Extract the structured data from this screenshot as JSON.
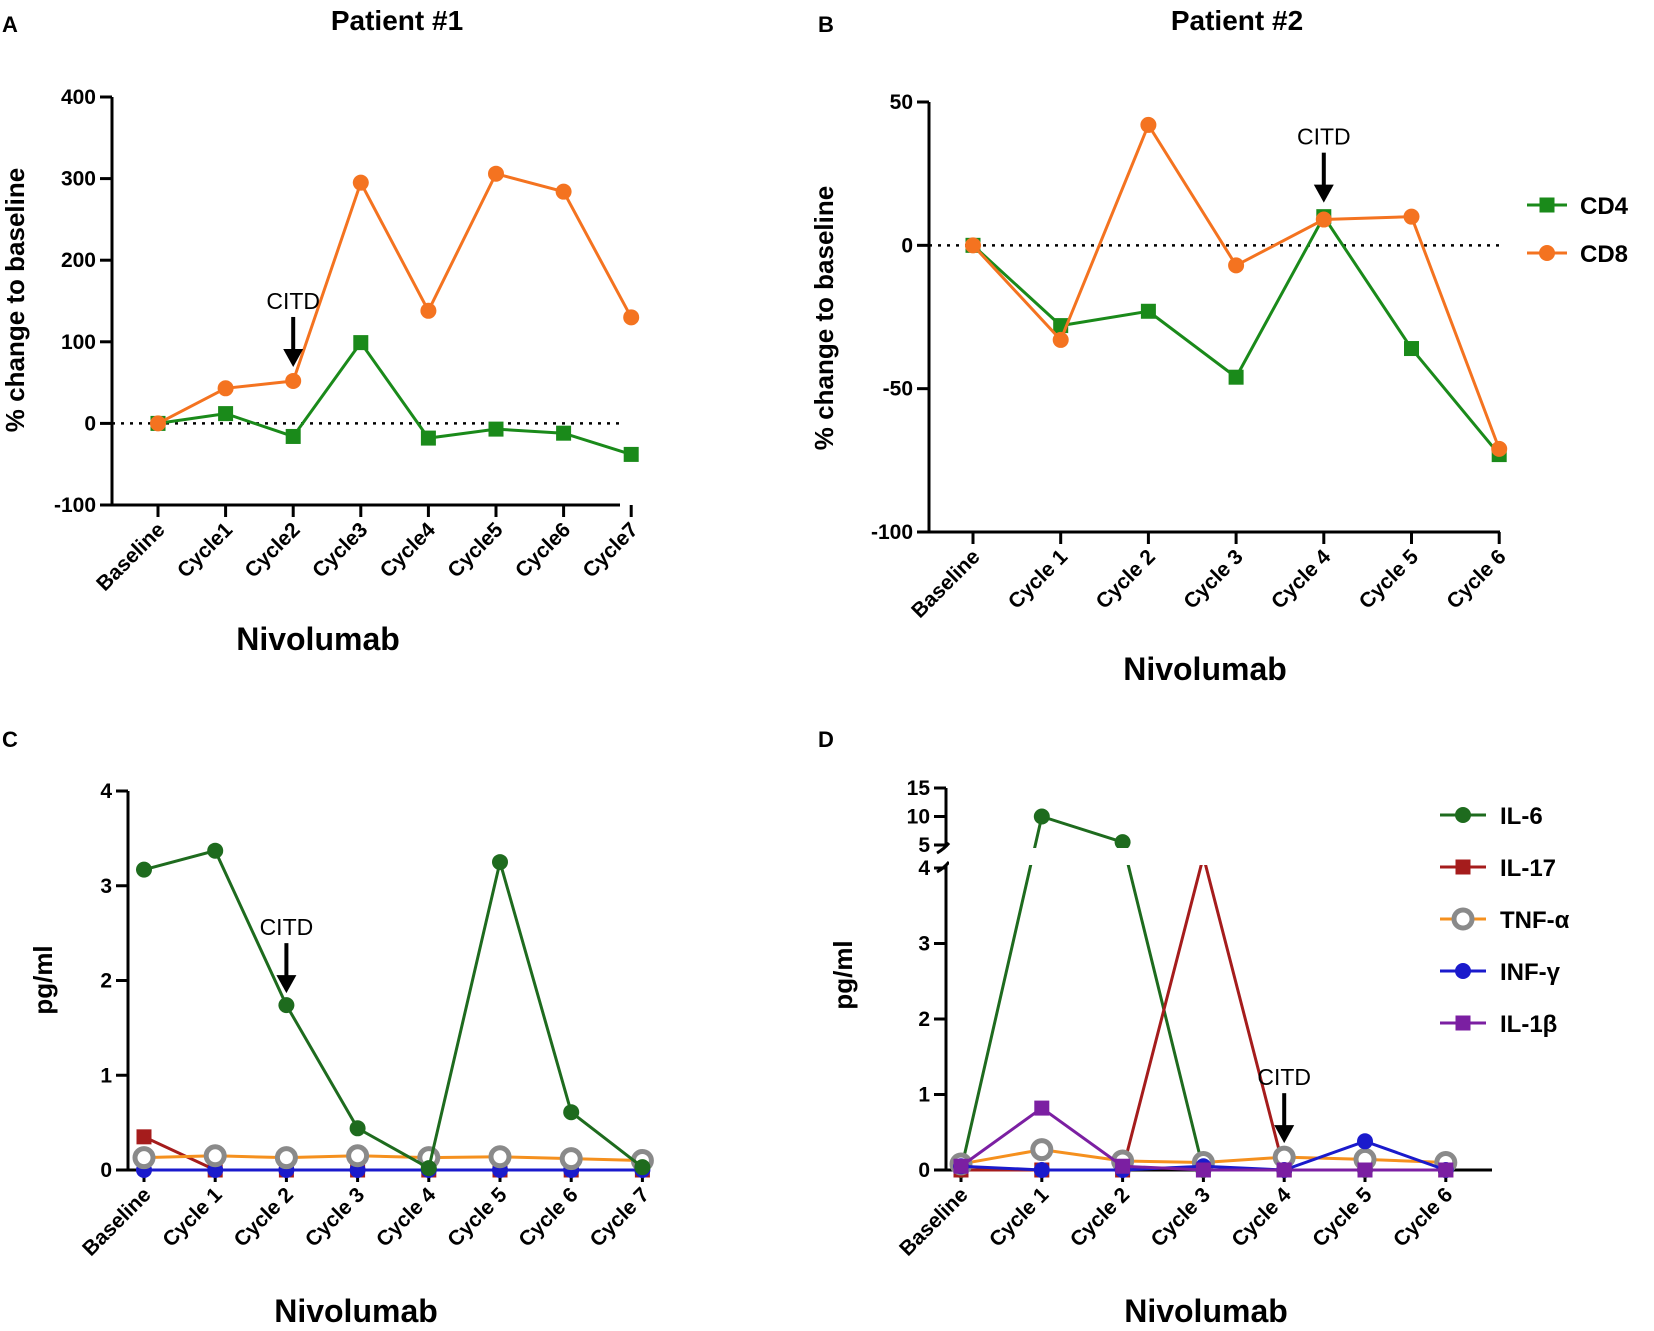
{
  "chart_data": [
    {
      "type": "line",
      "panel": "A",
      "title": "Patient #1",
      "xlabel": "Nivolumab",
      "ylabel": "% change to baseline",
      "ylim": [
        -100,
        400
      ],
      "yticks": [
        "400",
        "300",
        "200",
        "100",
        "0",
        "-100"
      ],
      "categories": [
        "Baseline",
        "Cycle1",
        "Cycle2",
        "Cycle3",
        "Cycle4",
        "Cycle5",
        "Cycle6",
        "Cycle7"
      ],
      "series": [
        {
          "name": "CD4",
          "color": "#1a8a1a",
          "marker": "square",
          "values": [
            0,
            12,
            -16,
            99,
            -18,
            -7,
            -12,
            -38
          ]
        },
        {
          "name": "CD8",
          "color": "#f47320",
          "marker": "circle",
          "values": [
            0,
            43,
            52,
            295,
            138,
            306,
            284,
            130
          ]
        }
      ],
      "reference_line": 0,
      "annotation": {
        "text": "CITD",
        "category_index": 2
      }
    },
    {
      "type": "line",
      "panel": "B",
      "title": "Patient #2",
      "xlabel": "Nivolumab",
      "ylabel": "% change to baseline",
      "ylim": [
        -100,
        50
      ],
      "yticks": [
        "50",
        "0",
        "-50",
        "-100"
      ],
      "categories": [
        "Baseline",
        "Cycle 1",
        "Cycle 2",
        "Cycle 3",
        "Cycle 4",
        "Cycle 5",
        "Cycle 6"
      ],
      "series": [
        {
          "name": "CD4",
          "color": "#1a8a1a",
          "marker": "square",
          "values": [
            0,
            -28,
            -23,
            -46,
            10,
            -36,
            -73
          ]
        },
        {
          "name": "CD8",
          "color": "#f47320",
          "marker": "circle",
          "values": [
            0,
            -33,
            42,
            -7,
            9,
            10,
            -71
          ]
        }
      ],
      "reference_line": 0,
      "annotation": {
        "text": "CITD",
        "category_index": 4
      }
    },
    {
      "type": "line",
      "panel": "C",
      "title": "",
      "xlabel": "Nivolumab",
      "ylabel": "pg/ml",
      "ylim": [
        0,
        4
      ],
      "yticks": [
        "4",
        "3",
        "2",
        "1",
        "0"
      ],
      "categories": [
        "Baseline",
        "Cycle 1",
        "Cycle 2",
        "Cycle 3",
        "Cycle 4",
        "Cycle 5",
        "Cycle 6",
        "Cycle 7"
      ],
      "series": [
        {
          "name": "IL-17",
          "color": "#a51c1c",
          "marker": "square",
          "values": [
            0.35,
            0,
            0,
            0,
            0,
            0,
            0,
            0
          ]
        },
        {
          "name": "INF-γ",
          "color": "#1a1acc",
          "marker": "circle",
          "values": [
            0,
            0,
            0,
            0,
            0,
            0,
            0,
            0
          ]
        },
        {
          "name": "TNF-α",
          "color": "#f5901e",
          "marker": "ring",
          "values": [
            0.13,
            0.15,
            0.13,
            0.15,
            0.13,
            0.14,
            0.12,
            0.1
          ]
        },
        {
          "name": "IL-6",
          "color": "#1e6b1e",
          "marker": "circle",
          "values": [
            3.17,
            3.37,
            1.74,
            0.44,
            0.02,
            3.25,
            0.61,
            0.03
          ]
        }
      ],
      "annotation": {
        "text": "CITD",
        "category_index": 2
      }
    },
    {
      "type": "line",
      "panel": "D",
      "title": "",
      "xlabel": "Nivolumab",
      "ylabel": "pg/ml",
      "ylim": [
        0,
        15
      ],
      "axis_break": [
        4,
        5
      ],
      "yticks": [
        "15",
        "10",
        "5",
        "4",
        "3",
        "2",
        "1",
        "0"
      ],
      "categories": [
        "Baseline",
        "Cycle 1",
        "Cycle 2",
        "Cycle 3",
        "Cycle 4",
        "Cycle 5",
        "Cycle 6"
      ],
      "series": [
        {
          "name": "IL-6",
          "color": "#1e6b1e",
          "marker": "circle",
          "values": [
            0,
            10,
            5.5,
            0,
            0,
            0,
            0
          ]
        },
        {
          "name": "IL-17",
          "color": "#a51c1c",
          "marker": "square",
          "values": [
            0,
            0,
            0,
            4.5,
            0,
            0,
            0
          ]
        },
        {
          "name": "TNF-α",
          "color": "#f5901e",
          "marker": "ring",
          "values": [
            0.08,
            0.27,
            0.12,
            0.1,
            0.17,
            0.14,
            0.1
          ]
        },
        {
          "name": "INF-γ",
          "color": "#1a1acc",
          "marker": "circle",
          "values": [
            0.05,
            0,
            0,
            0.05,
            0,
            0.38,
            0
          ]
        },
        {
          "name": "IL-1β",
          "color": "#7b1fa2",
          "marker": "square",
          "values": [
            0.05,
            0.82,
            0.05,
            0,
            0,
            0,
            0
          ]
        }
      ],
      "annotation": {
        "text": "CITD",
        "category_index": 4
      }
    }
  ],
  "legend_top": [
    "CD4",
    "CD8"
  ],
  "legend_bottom": [
    "IL-6",
    "IL-17",
    "TNF-α",
    "INF-γ",
    "IL-1β"
  ]
}
